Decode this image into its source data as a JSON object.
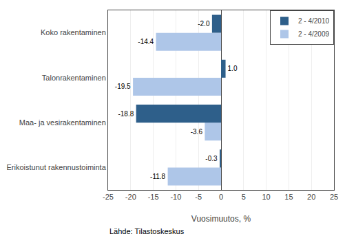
{
  "chart_data": {
    "type": "bar",
    "orientation": "horizontal",
    "categories": [
      "Erikoistunut rakennustoiminta",
      "Maa- ja vesirakentaminen",
      "Talonrakentaminen",
      "Koko rakentaminen"
    ],
    "series": [
      {
        "name": "2 - 4/2010",
        "color": "#2e5f8a",
        "values": [
          -0.3,
          -18.8,
          1.0,
          -2.0
        ],
        "value_labels": [
          "-0.3",
          "-18.8",
          "1.0",
          "-2.0"
        ]
      },
      {
        "name": "2 - 4/2009",
        "color": "#aec6e8",
        "values": [
          -11.8,
          -3.6,
          -19.5,
          -14.4
        ],
        "value_labels": [
          "-11.8",
          "-3.6",
          "-19.5",
          "-14.4"
        ]
      }
    ],
    "xlabel": "Vuosimuutos, %",
    "xlim": [
      -25,
      25
    ],
    "xticks": [
      -25,
      -20,
      -15,
      -10,
      -5,
      0,
      5,
      10,
      15,
      20,
      25
    ],
    "grid": true,
    "legend": "upper right",
    "data_labels": true,
    "annotations": [
      "Lähde: Tilastoskeskus"
    ]
  }
}
